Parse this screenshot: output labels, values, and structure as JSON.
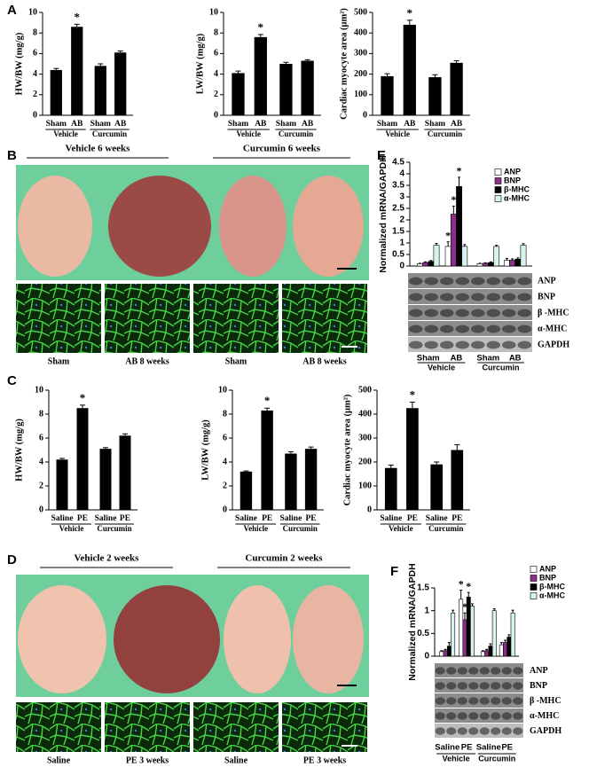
{
  "panel_labels": [
    "A",
    "B",
    "C",
    "D",
    "E",
    "F"
  ],
  "chart_data": [
    {
      "type": "bar",
      "ylabel": "HW/BW (mg/g)",
      "categories": [
        "Sham",
        "AB",
        "Sham",
        "AB"
      ],
      "group_labels": [
        "Vehicle",
        "Curcumin"
      ],
      "values": [
        4.4,
        8.6,
        4.8,
        6.1
      ],
      "errors": [
        0.15,
        0.25,
        0.2,
        0.15
      ],
      "significance": [
        null,
        "*",
        null,
        null
      ],
      "color": "#000000",
      "ylim": [
        0,
        10
      ],
      "yticks": [
        0,
        2,
        4,
        6,
        8,
        10
      ]
    },
    {
      "type": "bar",
      "ylabel": "LW/BW (mg/g)",
      "categories": [
        "Sham",
        "AB",
        "Sham",
        "AB"
      ],
      "group_labels": [
        "Vehicle",
        "Curcumin"
      ],
      "values": [
        4.1,
        7.6,
        5.0,
        5.3
      ],
      "errors": [
        0.2,
        0.25,
        0.15,
        0.1
      ],
      "significance": [
        null,
        "*",
        null,
        null
      ],
      "color": "#000000",
      "ylim": [
        0,
        10
      ],
      "yticks": [
        0,
        2,
        4,
        6,
        8,
        10
      ]
    },
    {
      "type": "bar",
      "ylabel": "Cardiac myocyte area (μm²)",
      "categories": [
        "Sham",
        "AB",
        "Sham",
        "AB"
      ],
      "group_labels": [
        "Vehicle",
        "Curcumin"
      ],
      "values": [
        190,
        440,
        185,
        255
      ],
      "errors": [
        12,
        22,
        12,
        10
      ],
      "significance": [
        null,
        "*",
        null,
        null
      ],
      "color": "#000000",
      "ylim": [
        0,
        500
      ],
      "yticks": [
        0,
        100,
        200,
        300,
        400,
        500
      ]
    },
    {
      "type": "bar",
      "ylabel": "HW/BW (mg/g)",
      "categories": [
        "Saline",
        "PE",
        "Saline",
        "PE"
      ],
      "group_labels": [
        "Vehicle",
        "Curcumin"
      ],
      "values": [
        4.2,
        8.5,
        5.1,
        6.2
      ],
      "errors": [
        0.1,
        0.25,
        0.1,
        0.15
      ],
      "significance": [
        null,
        "*",
        null,
        null
      ],
      "color": "#000000",
      "ylim": [
        0,
        10
      ],
      "yticks": [
        0,
        2,
        4,
        6,
        8,
        10
      ]
    },
    {
      "type": "bar",
      "ylabel": "LW/BW (mg/g)",
      "categories": [
        "Saline",
        "PE",
        "Saline",
        "PE"
      ],
      "group_labels": [
        "Vehicle",
        "Curcumin"
      ],
      "values": [
        3.2,
        8.3,
        4.7,
        5.1
      ],
      "errors": [
        0.05,
        0.2,
        0.15,
        0.15
      ],
      "significance": [
        null,
        "*",
        null,
        null
      ],
      "color": "#000000",
      "ylim": [
        0,
        10
      ],
      "yticks": [
        0,
        2,
        4,
        6,
        8,
        10
      ]
    },
    {
      "type": "bar",
      "ylabel": "Cardiac myocyte area (μm²)",
      "categories": [
        "Saline",
        "PE",
        "Saline",
        "PE"
      ],
      "group_labels": [
        "Vehicle",
        "Curcumin"
      ],
      "values": [
        175,
        425,
        190,
        250
      ],
      "errors": [
        12,
        25,
        10,
        22
      ],
      "significance": [
        null,
        "*",
        null,
        null
      ],
      "color": "#000000",
      "ylim": [
        0,
        500
      ],
      "yticks": [
        0,
        100,
        200,
        300,
        400,
        500
      ]
    },
    {
      "type": "grouped_bar",
      "ylabel": "Normalized mRNA/GAPDH",
      "categories": [
        "Sham",
        "AB",
        "Sham",
        "AB"
      ],
      "group_labels": [
        "Vehicle",
        "Curcumin"
      ],
      "ylim": [
        0,
        4.5
      ],
      "yticks": [
        0,
        0.5,
        1,
        1.5,
        2,
        2.5,
        3,
        3.5,
        4,
        4.5
      ],
      "series": [
        {
          "name": "ANP",
          "color": "#ffffff",
          "values": [
            0.1,
            0.85,
            0.1,
            0.25
          ],
          "errors": [
            0.02,
            0.2,
            0.02,
            0.08
          ],
          "significance": [
            null,
            "*",
            null,
            null
          ]
        },
        {
          "name": "BNP",
          "color": "#8b2f8b",
          "values": [
            0.15,
            2.25,
            0.12,
            0.25
          ],
          "errors": [
            0.03,
            0.35,
            0.02,
            0.06
          ],
          "significance": [
            null,
            "*",
            null,
            null
          ]
        },
        {
          "name": "β-MHC",
          "color": "#000000",
          "values": [
            0.2,
            3.45,
            0.15,
            0.3
          ],
          "errors": [
            0.04,
            0.4,
            0.03,
            0.05
          ],
          "significance": [
            null,
            "*",
            null,
            null
          ]
        },
        {
          "name": "α-MHC",
          "color": "#d6f3ee",
          "values": [
            0.9,
            0.85,
            0.85,
            0.9
          ],
          "errors": [
            0.08,
            0.08,
            0.05,
            0.07
          ],
          "significance": [
            null,
            null,
            null,
            null
          ]
        }
      ]
    },
    {
      "type": "grouped_bar",
      "ylabel": "Normalized mRNA/GAPDH",
      "categories": [
        "Saline",
        "PE",
        "Saline",
        "PE"
      ],
      "group_labels": [
        "Vehicle",
        "Curcumin"
      ],
      "ylim": [
        0,
        1.5
      ],
      "yticks": [
        0,
        0.5,
        1,
        1.5
      ],
      "series": [
        {
          "name": "ANP",
          "color": "#ffffff",
          "values": [
            0.1,
            1.25,
            0.1,
            0.25
          ],
          "errors": [
            0.02,
            0.2,
            0.02,
            0.05
          ],
          "significance": [
            null,
            "*",
            null,
            null
          ]
        },
        {
          "name": "BNP",
          "color": "#8b2f8b",
          "values": [
            0.12,
            0.8,
            0.12,
            0.3
          ],
          "errors": [
            0.03,
            0.15,
            0.03,
            0.05
          ],
          "significance": [
            null,
            "*",
            null,
            null
          ]
        },
        {
          "name": "β-MHC",
          "color": "#000000",
          "values": [
            0.22,
            1.3,
            0.22,
            0.42
          ],
          "errors": [
            0.08,
            0.1,
            0.05,
            0.05
          ],
          "significance": [
            null,
            "*",
            null,
            null
          ]
        },
        {
          "name": "α-MHC",
          "color": "#d6f3ee",
          "values": [
            0.95,
            1.1,
            1.0,
            0.95
          ],
          "errors": [
            0.06,
            0.05,
            0.04,
            0.06
          ],
          "significance": [
            null,
            null,
            null,
            null
          ]
        }
      ]
    }
  ],
  "photos": [
    {
      "headers": [
        "Vehicle 6 weeks",
        "Curcumin 6 weeks"
      ],
      "micrograph_labels": [
        "Sham",
        "AB 8 weeks",
        "Sham",
        "AB 8 weeks"
      ]
    },
    {
      "headers": [
        "Vehicle 2 weeks",
        "Curcumin 2 weeks"
      ],
      "micrograph_labels": [
        "Saline",
        "PE 3 weeks",
        "Saline",
        "PE 3 weeks"
      ]
    }
  ],
  "blots": [
    {
      "labels": [
        "ANP",
        "BNP",
        "β -MHC",
        "α-MHC",
        "GAPDH"
      ]
    },
    {
      "labels": [
        "ANP",
        "BNP",
        "β -MHC",
        "α-MHC",
        "GAPDH"
      ]
    }
  ]
}
